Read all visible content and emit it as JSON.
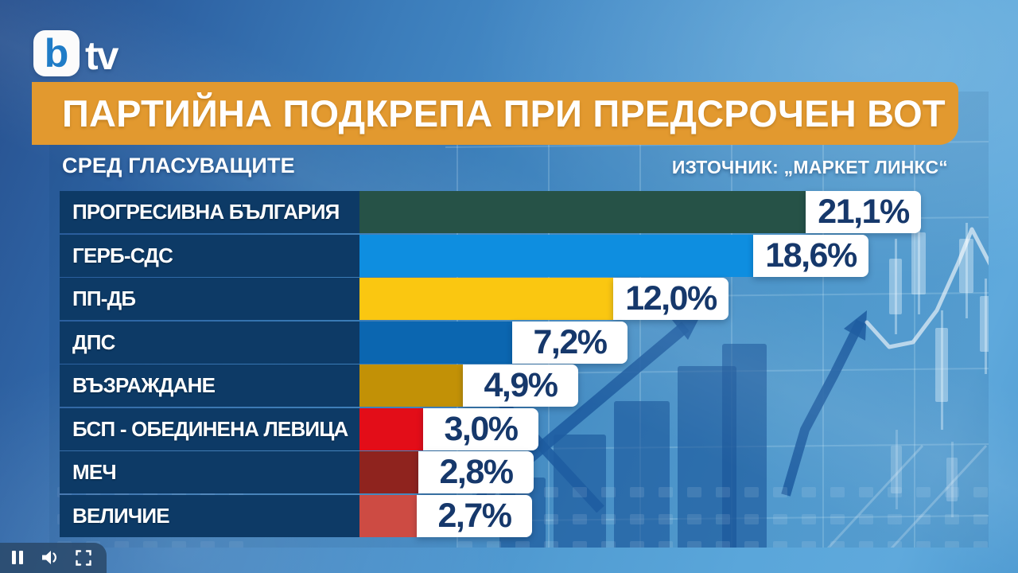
{
  "logo": {
    "b": "b",
    "tv": "tv"
  },
  "header": {
    "title": "ПАРТИЙНА ПОДКРЕПА ПРИ ПРЕДСРОЧЕН ВОТ",
    "subtitle": "СРЕД ГЛАСУВАЩИТЕ",
    "source": "ИЗТОЧНИК: „МАРКЕТ ЛИНКС“"
  },
  "chart_data": {
    "type": "bar",
    "orientation": "horizontal",
    "title": "ПАРТИЙНА ПОДКРЕПА ПРИ ПРЕДСРОЧЕН ВОТ",
    "subtitle": "СРЕД ГЛАСУВАЩИТЕ",
    "source": "ИЗТОЧНИК: „МАРКЕТ ЛИНКС“",
    "unit": "%",
    "decimal_separator": ",",
    "xlim": [
      0,
      22
    ],
    "grid": false,
    "categories": [
      "ПРОГРЕСИВНА БЪЛГАРИЯ",
      "ГЕРБ-СДС",
      "ПП-ДБ",
      "ДПС",
      "ВЪЗРАЖДАНЕ",
      "БСП - ОБЕДИНЕНА ЛЕВИЦА",
      "МЕЧ",
      "ВЕЛИЧИЕ"
    ],
    "values": [
      21.1,
      18.6,
      12.0,
      7.2,
      4.9,
      3.0,
      2.8,
      2.7
    ],
    "value_labels": [
      "21,1%",
      "18,6%",
      "12,0%",
      "7,2%",
      "4,9%",
      "3,0%",
      "2,8%",
      "2,7%"
    ],
    "bar_colors": [
      "#265247",
      "#0e8ee0",
      "#fac711",
      "#0b66b0",
      "#c29106",
      "#e30d18",
      "#8f231e",
      "#cd4b43"
    ]
  },
  "colors": {
    "banner_bg": "#e2992f",
    "label_box_bg": "#0d3a66",
    "badge_bg": "#ffffff",
    "value_text": "#16386b",
    "text_light": "#ffffff",
    "logo_b_blue": "#1f7cc7"
  },
  "player": {
    "pause_label": "pause",
    "volume_label": "volume",
    "fullscreen_label": "fullscreen"
  }
}
